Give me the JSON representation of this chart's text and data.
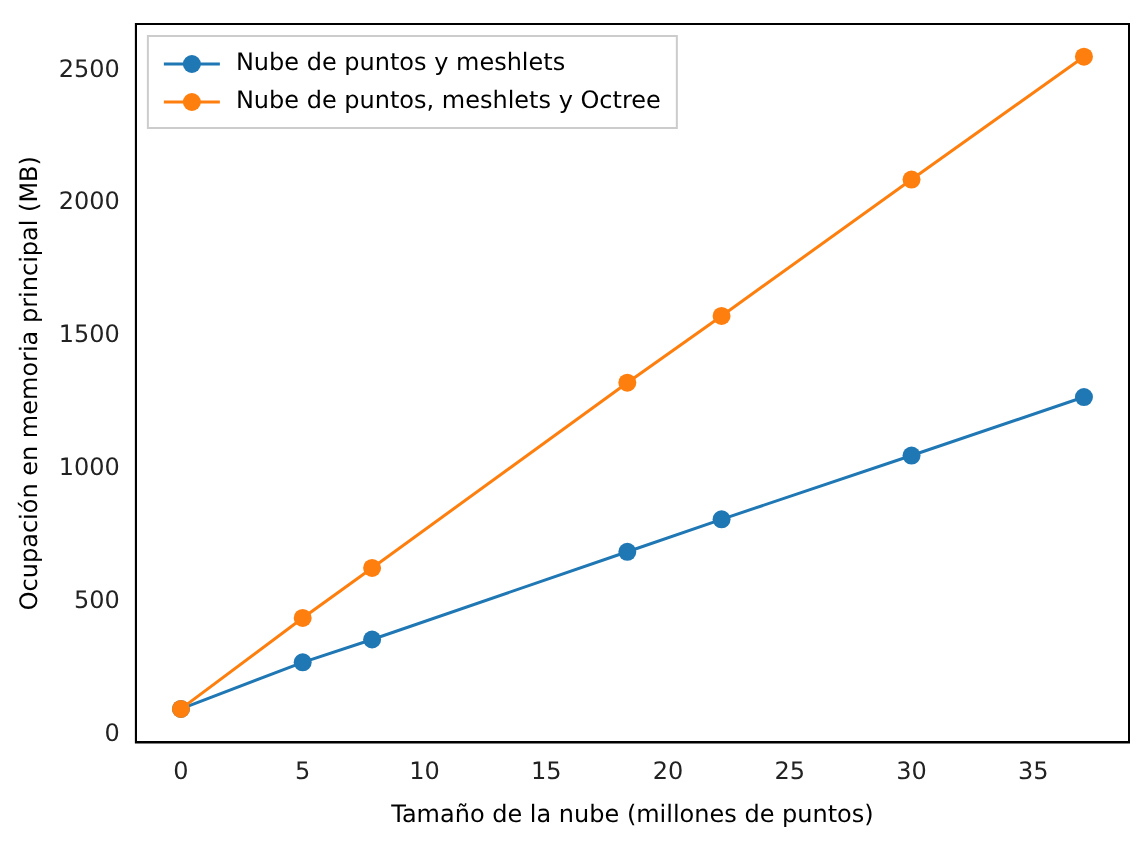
{
  "chart_data": {
    "type": "line",
    "xlabel": "Tamaño de la nube (millones de puntos)",
    "ylabel": "Ocupación en memoria principal (MB)",
    "xlim": [
      -1.85,
      38.93
    ],
    "xticks": [
      0,
      5,
      10,
      15,
      20,
      25,
      30,
      35
    ],
    "ylim": [
      -28,
      2674
    ],
    "yticks": [
      0,
      500,
      1000,
      1500,
      2000,
      2500
    ],
    "x": [
      0,
      5,
      7.85,
      18.33,
      22.2,
      30,
      37.08
    ],
    "series": [
      {
        "name": "Nube de puntos y meshlets",
        "color": "#1f77b4",
        "values": [
          98,
          273,
          359,
          689,
          811,
          1051,
          1271
        ]
      },
      {
        "name": "Nube de puntos, meshlets y Octree",
        "color": "#ff7f0e",
        "values": [
          98,
          440,
          628,
          1325,
          1576,
          2089,
          2551
        ]
      }
    ],
    "legend": "top left",
    "marker": "circle",
    "line_style": "solid",
    "grid": false
  }
}
